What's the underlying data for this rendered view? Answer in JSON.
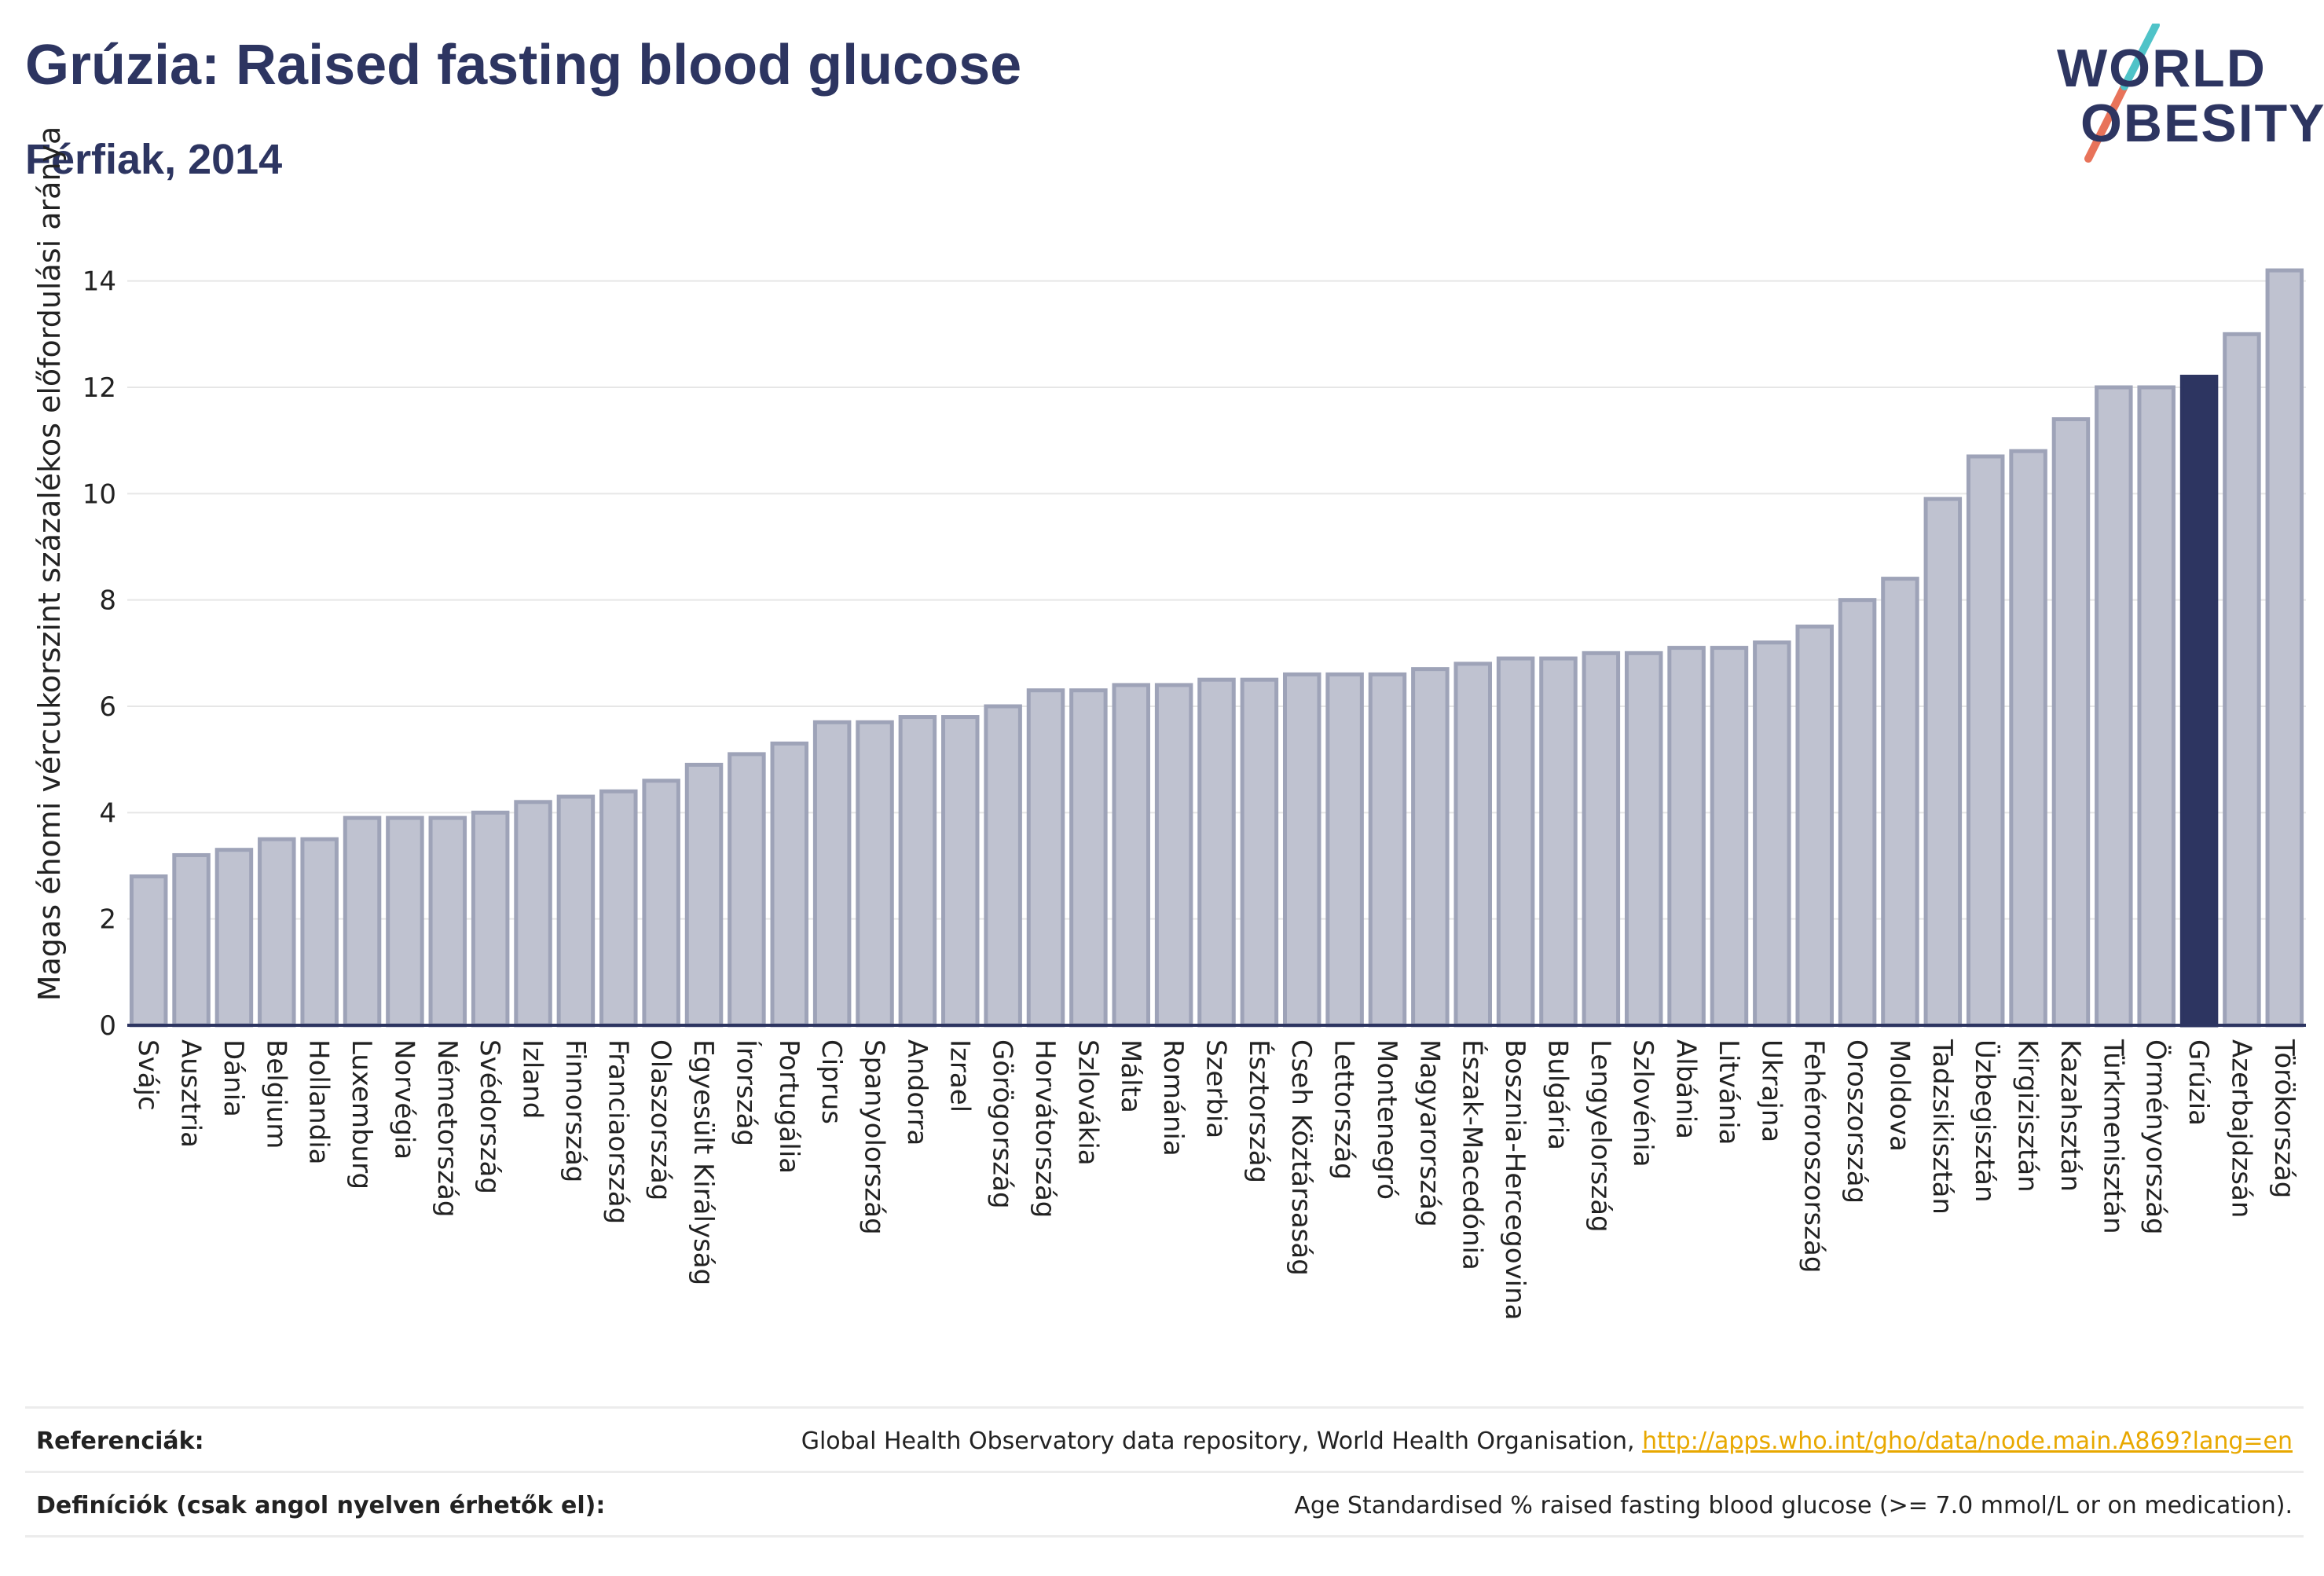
{
  "header": {
    "title": "Grúzia: Raised fasting blood glucose",
    "subtitle": "Férfiak, 2014"
  },
  "logo": {
    "line1": "WORLD",
    "line2": "OBESITY",
    "accent_color": "#e8735a",
    "accent_color2": "#4fc3c8",
    "text_color": "#2d3561"
  },
  "footer": {
    "references_label": "Referenciák:",
    "references_text": "Global Health Observatory data repository, World Health Organisation,",
    "references_link": "http://apps.who.int/gho/data/node.main.A869?lang=en",
    "definitions_label": "Definíciók (csak angol nyelven érhetők el):",
    "definitions_text": "Age Standardised % raised fasting blood glucose (>= 7.0 mmol/L or on medication)."
  },
  "colors": {
    "bar_fill": "#bfc2d0",
    "bar_stroke": "#9ea3b8",
    "highlight": "#2d3561",
    "grid": "#e6e6e6"
  },
  "chart_data": {
    "type": "bar",
    "title": "Grúzia: Raised fasting blood glucose",
    "subtitle": "Férfiak, 2014",
    "xlabel": "",
    "ylabel": "Magas éhomi vércukorszint százalékos előfordulási aránya",
    "ylim": [
      0,
      15
    ],
    "yticks": [
      0,
      2,
      4,
      6,
      8,
      10,
      12,
      14
    ],
    "grid": true,
    "highlight_category": "Grúzia",
    "categories": [
      "Svájc",
      "Ausztria",
      "Dánia",
      "Belgium",
      "Hollandia",
      "Luxemburg",
      "Norvégia",
      "Németország",
      "Svédország",
      "Izland",
      "Finnország",
      "Franciaország",
      "Olaszország",
      "Egyesült Királyság",
      "Írország",
      "Portugália",
      "Ciprus",
      "Spanyolország",
      "Andorra",
      "Izrael",
      "Görögország",
      "Horvátország",
      "Szlovákia",
      "Málta",
      "Románia",
      "Szerbia",
      "Észtország",
      "Cseh Köztársaság",
      "Lettország",
      "Montenegró",
      "Magyarország",
      "Észak-Macedónia",
      "Bosznia-Hercegovina",
      "Bulgária",
      "Lengyelország",
      "Szlovénia",
      "Albánia",
      "Litvánia",
      "Ukrajna",
      "Fehéroroszország",
      "Oroszország",
      "Moldova",
      "Tadzsikisztán",
      "Üzbegisztán",
      "Kirgizisztán",
      "Kazahsztán",
      "Türkmenisztán",
      "Örményország",
      "Grúzia",
      "Azerbajdzsán",
      "Törökország"
    ],
    "values": [
      2.8,
      3.2,
      3.3,
      3.5,
      3.5,
      3.9,
      3.9,
      3.9,
      4.0,
      4.2,
      4.3,
      4.4,
      4.6,
      4.9,
      5.1,
      5.3,
      5.7,
      5.7,
      5.8,
      5.8,
      6.0,
      6.3,
      6.3,
      6.4,
      6.4,
      6.5,
      6.5,
      6.6,
      6.6,
      6.6,
      6.7,
      6.8,
      6.9,
      6.9,
      7.0,
      7.0,
      7.1,
      7.1,
      7.2,
      7.5,
      8.0,
      8.4,
      9.9,
      10.7,
      10.8,
      11.4,
      12.0,
      12.0,
      12.2,
      13.0,
      14.2
    ]
  }
}
